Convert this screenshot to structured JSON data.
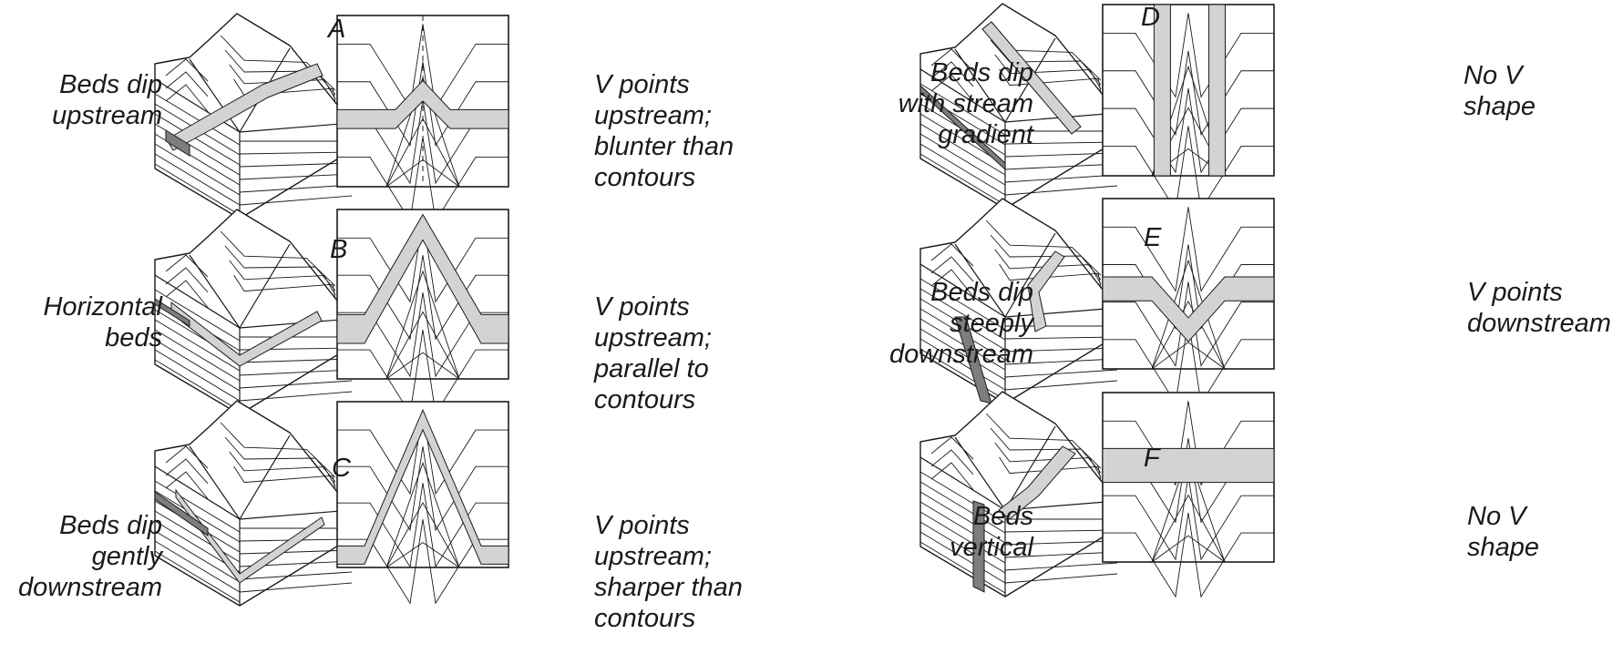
{
  "panels": [
    {
      "id": "A",
      "letter": "A",
      "left_label": "Beds dip\nupstream",
      "right_label": "V points\nupstream;\nblunter than\ncontours"
    },
    {
      "id": "B",
      "letter": "B",
      "left_label": "Horizontal\nbeds",
      "right_label": "V points\nupstream;\nparallel to\ncontours"
    },
    {
      "id": "C",
      "letter": "C",
      "left_label": "Beds dip\ngently\ndownstream",
      "right_label": "V points\nupstream;\nsharper than\ncontours"
    },
    {
      "id": "D",
      "letter": "D",
      "left_label": "Beds dip\nwith stream\ngradient",
      "right_label": "No V\nshape"
    },
    {
      "id": "E",
      "letter": "E",
      "left_label": "Beds dip\nsteeply\ndownstream",
      "right_label": "V points\ndownstream"
    },
    {
      "id": "F",
      "letter": "F",
      "left_label": "Beds\nvertical",
      "right_label": "No V\nshape"
    }
  ],
  "colors": {
    "bed_fill": "#d3d3d3",
    "bed_dark": "#7d7d7d",
    "line": "#1a1a1a"
  }
}
